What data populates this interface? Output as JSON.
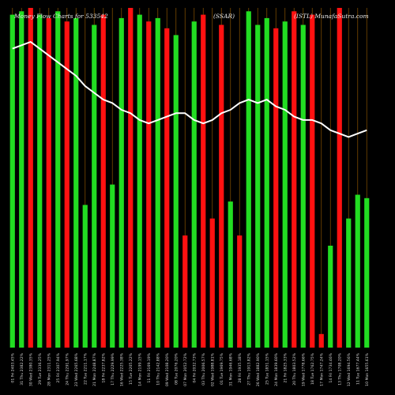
{
  "chart_data": {
    "type": "bar",
    "title_parts": {
      "left": "Money Flow Charts for 533542",
      "center": "(SSAR)",
      "right": "(ISTL) MunafaSutra.com"
    },
    "grid": false,
    "colors": {
      "background": "#000000",
      "up": "#22dd22",
      "down": "#ff1111",
      "line": "#ffffff",
      "guide": "#7a4a00",
      "text": "#dddddd"
    },
    "categories": [
      "01 Fri 2403.45%",
      "31 Thu 2382.22%",
      "30 Wed 2380.35%",
      "29 Tue 2336.25%",
      "28 Mon 2311.25%",
      "25 Fri 2307.94%",
      "24 Thu 2291.97%",
      "23 Wed 2265.68%",
      "22 Tue 2211.17%",
      "21 Mon 2248.87%",
      "18 Fri 2237.82%",
      "17 Thu 2229.99%",
      "16 Wed 2225.38%",
      "15 Tue 2205.22%",
      "14 Mon 2199.15%",
      "11 Fri 2169.19%",
      "10 Thu 2142.88%",
      "09 Wed 2108.20%",
      "08 Tue 2076.20%",
      "07 Mon 2052.72%",
      "04 Fri 2032.73%",
      "03 Thu 2006.57%",
      "02 Wed 1988.81%",
      "01 Tue 1969.75%",
      "31 Mon 1946.68%",
      "28 Fri 1935.18%",
      "27 Thu 1913.82%",
      "26 Wed 1882.90%",
      "25 Tue 1851.15%",
      "24 Mon 1839.60%",
      "21 Fri 1825.33%",
      "20 Thu 1803.52%",
      "19 Wed 1778.66%",
      "18 Tue 1762.75%",
      "17 Mon 1747.24%",
      "14 Fri 1734.46%",
      "13 Thu 1708.20%",
      "12 Wed 1694.56%",
      "11 Tue 1677.44%",
      "10 Mon 1655.61%"
    ],
    "direction": [
      "up",
      "up",
      "down",
      "up",
      "down",
      "up",
      "down",
      "up",
      "up",
      "up",
      "down",
      "up",
      "up",
      "down",
      "up",
      "down",
      "up",
      "down",
      "up",
      "down",
      "up",
      "down",
      "down",
      "down",
      "up",
      "down",
      "up",
      "up",
      "up",
      "down",
      "up",
      "down",
      "up",
      "down",
      "down",
      "up",
      "down",
      "up",
      "up",
      "up"
    ],
    "values": [
      98,
      99,
      100,
      98,
      97,
      99,
      96,
      97,
      42,
      95,
      98,
      48,
      97,
      100,
      98,
      96,
      97,
      94,
      92,
      33,
      96,
      98,
      38,
      95,
      43,
      33,
      99,
      95,
      97,
      94,
      96,
      99,
      95,
      98,
      4,
      30,
      100,
      38,
      45,
      44
    ],
    "line": [
      88,
      89,
      90,
      88,
      86,
      84,
      82,
      80,
      77,
      75,
      73,
      72,
      70,
      69,
      67,
      66,
      67,
      68,
      69,
      69,
      67,
      66,
      67,
      69,
      70,
      72,
      73,
      72,
      73,
      71,
      70,
      68,
      67,
      67,
      66,
      64,
      63,
      62,
      63,
      64
    ],
    "ylim": [
      0,
      100
    ]
  }
}
